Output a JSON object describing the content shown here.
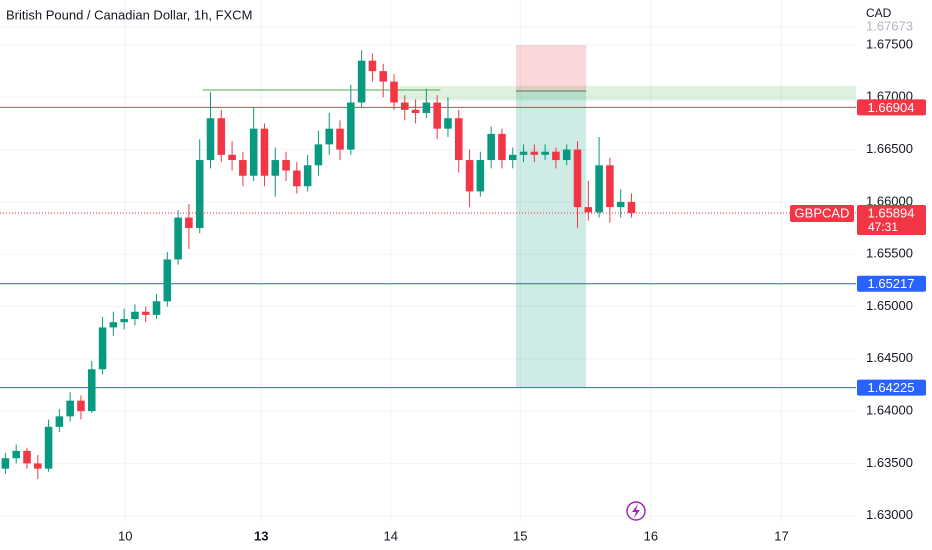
{
  "chart_data": {
    "type": "candlestick",
    "title": "British Pound / Canadian Dollar, 1h, FXCM",
    "currency": "CAD",
    "up_color": "#089981",
    "down_color": "#f23645",
    "grid": true,
    "xlim": [
      -0.5,
      78.8
    ],
    "xticks": [
      {
        "value": 11.1,
        "label": "10"
      },
      {
        "value": 23.7,
        "label": "13"
      },
      {
        "value": 35.7,
        "label": "14"
      },
      {
        "value": 47.7,
        "label": "15"
      },
      {
        "value": 59.8,
        "label": "16"
      },
      {
        "value": 71.9,
        "label": "17"
      }
    ],
    "ylim": [
      1.6294,
      1.6793
    ],
    "yticks": [
      {
        "value": 1.67673,
        "label": "1.67673"
      },
      {
        "value": 1.675,
        "label": "1.67500"
      },
      {
        "value": 1.67,
        "label": "1.67000"
      },
      {
        "value": 1.665,
        "label": "1.66500"
      },
      {
        "value": 1.66,
        "label": "1.66000"
      },
      {
        "value": 1.655,
        "label": "1.65500"
      },
      {
        "value": 1.65,
        "label": "1.65000"
      },
      {
        "value": 1.645,
        "label": "1.64500"
      },
      {
        "value": 1.64,
        "label": "1.64000"
      },
      {
        "value": 1.635,
        "label": "1.63500"
      },
      {
        "value": 1.63,
        "label": "1.63000"
      }
    ],
    "candles": [
      [
        1.6345,
        1.636,
        1.634,
        1.6355
      ],
      [
        1.6355,
        1.6368,
        1.635,
        1.6362
      ],
      [
        1.6362,
        1.6365,
        1.6345,
        1.635
      ],
      [
        1.635,
        1.6358,
        1.6335,
        1.6345
      ],
      [
        1.6345,
        1.6392,
        1.6342,
        1.6385
      ],
      [
        1.6385,
        1.6402,
        1.638,
        1.6395
      ],
      [
        1.6395,
        1.6418,
        1.639,
        1.641
      ],
      [
        1.641,
        1.6415,
        1.6392,
        1.64
      ],
      [
        1.64,
        1.6448,
        1.6398,
        1.644
      ],
      [
        1.644,
        1.649,
        1.6435,
        1.648
      ],
      [
        1.648,
        1.6495,
        1.6472,
        1.6485
      ],
      [
        1.6485,
        1.6498,
        1.6478,
        1.6488
      ],
      [
        1.6488,
        1.6502,
        1.6482,
        1.6495
      ],
      [
        1.6495,
        1.65,
        1.6485,
        1.6492
      ],
      [
        1.6492,
        1.6512,
        1.6488,
        1.6505
      ],
      [
        1.6505,
        1.6552,
        1.65,
        1.6545
      ],
      [
        1.6545,
        1.6592,
        1.654,
        1.6585
      ],
      [
        1.6585,
        1.6598,
        1.6555,
        1.6575
      ],
      [
        1.6575,
        1.666,
        1.657,
        1.664
      ],
      [
        1.664,
        1.6705,
        1.6632,
        1.668
      ],
      [
        1.668,
        1.6688,
        1.6638,
        1.6645
      ],
      [
        1.6645,
        1.6658,
        1.663,
        1.664
      ],
      [
        1.664,
        1.6648,
        1.6615,
        1.6625
      ],
      [
        1.6625,
        1.669,
        1.662,
        1.667
      ],
      [
        1.667,
        1.6675,
        1.6615,
        1.6625
      ],
      [
        1.6625,
        1.6652,
        1.6605,
        1.664
      ],
      [
        1.664,
        1.6648,
        1.662,
        1.663
      ],
      [
        1.663,
        1.6638,
        1.6608,
        1.6615
      ],
      [
        1.6615,
        1.6645,
        1.661,
        1.6635
      ],
      [
        1.6635,
        1.6668,
        1.6625,
        1.6655
      ],
      [
        1.6655,
        1.6685,
        1.6645,
        1.667
      ],
      [
        1.667,
        1.6678,
        1.664,
        1.665
      ],
      [
        1.665,
        1.6712,
        1.6645,
        1.6695
      ],
      [
        1.6695,
        1.6745,
        1.669,
        1.6735
      ],
      [
        1.6735,
        1.6742,
        1.6715,
        1.6725
      ],
      [
        1.6725,
        1.6732,
        1.67,
        1.6715
      ],
      [
        1.6715,
        1.6722,
        1.6688,
        1.6695
      ],
      [
        1.6695,
        1.6702,
        1.6678,
        1.6688
      ],
      [
        1.6688,
        1.6698,
        1.6675,
        1.6685
      ],
      [
        1.6685,
        1.6708,
        1.668,
        1.6695
      ],
      [
        1.6695,
        1.6702,
        1.666,
        1.667
      ],
      [
        1.667,
        1.67,
        1.6662,
        1.668
      ],
      [
        1.668,
        1.6688,
        1.6628,
        1.664
      ],
      [
        1.664,
        1.665,
        1.6595,
        1.661
      ],
      [
        1.661,
        1.6648,
        1.6605,
        1.664
      ],
      [
        1.664,
        1.6672,
        1.6632,
        1.6665
      ],
      [
        1.6665,
        1.667,
        1.6632,
        1.664
      ],
      [
        1.664,
        1.6652,
        1.6632,
        1.6645
      ],
      [
        1.6645,
        1.6655,
        1.6638,
        1.6648
      ],
      [
        1.6648,
        1.6655,
        1.6638,
        1.6645
      ],
      [
        1.6645,
        1.6655,
        1.664,
        1.6648
      ],
      [
        1.6648,
        1.6652,
        1.6632,
        1.664
      ],
      [
        1.664,
        1.6655,
        1.6635,
        1.665
      ],
      [
        1.665,
        1.6658,
        1.6575,
        1.6595
      ],
      [
        1.6595,
        1.662,
        1.6582,
        1.659
      ],
      [
        1.659,
        1.6662,
        1.6585,
        1.6635
      ],
      [
        1.6635,
        1.6642,
        1.658,
        1.6595
      ],
      [
        1.6595,
        1.6612,
        1.6585,
        1.66
      ],
      [
        1.66,
        1.6608,
        1.6585,
        1.65894
      ]
    ],
    "horizontal_lines": [
      {
        "value": 1.66904,
        "color": "#f23645"
      },
      {
        "value": 1.65217,
        "color": "#2962ff"
      },
      {
        "value": 1.64225,
        "color": "#2962ff"
      }
    ],
    "last_price": {
      "symbol": "GBPCAD",
      "value": 1.65894,
      "countdown": "47:31",
      "color": "#f23645"
    },
    "position": {
      "x": [
        47.3,
        53.8
      ],
      "stop": 1.675,
      "entry": 1.6706,
      "target": 1.64225
    },
    "zone": {
      "x_start": 36.1,
      "from": 1.6697,
      "to": 1.6711
    },
    "trend_line": {
      "x": [
        18.3,
        40.3
      ],
      "value": 1.6707
    }
  }
}
